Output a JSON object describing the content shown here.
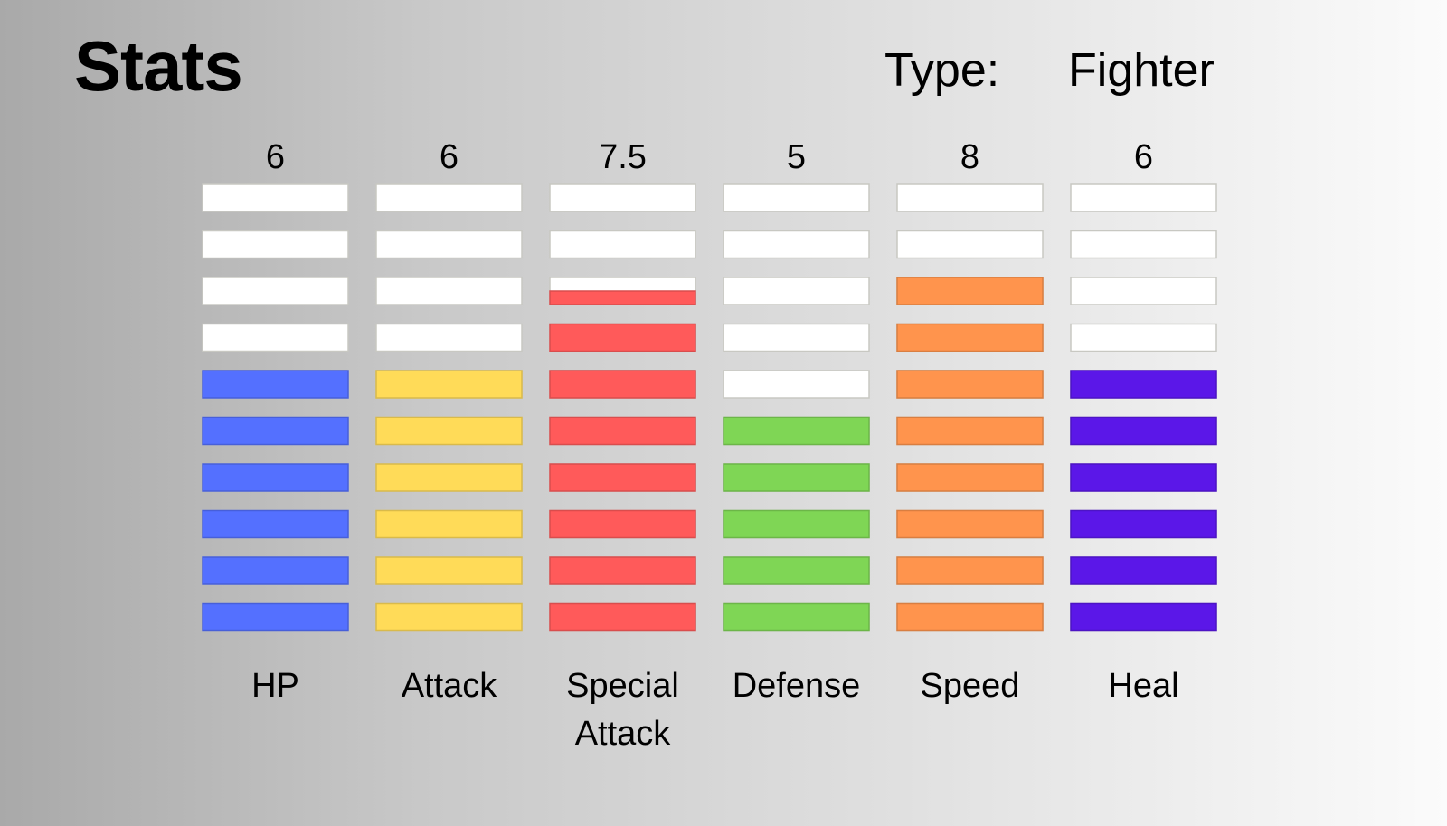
{
  "header": {
    "title": "Stats",
    "type_label": "Type:",
    "type_value": "Fighter"
  },
  "chart_data": {
    "type": "bar",
    "ylim": [
      0,
      10
    ],
    "segments_per_bar": 10,
    "empty_color": "#ffffff",
    "categories": [
      "HP",
      "Attack",
      "Special Attack",
      "Defense",
      "Speed",
      "Heal"
    ],
    "category_lines": [
      [
        "HP"
      ],
      [
        "Attack"
      ],
      [
        "Special",
        "Attack"
      ],
      [
        "Defense"
      ],
      [
        "Speed"
      ],
      [
        "Heal"
      ]
    ],
    "value_labels": [
      "6",
      "6",
      "7.5",
      "5",
      "8",
      "6"
    ],
    "values": [
      6,
      6,
      7.5,
      5,
      8,
      6
    ],
    "colors": [
      "#5470ff",
      "#ffdb58",
      "#ff5a5a",
      "#7fd655",
      "#ff944d",
      "#5b17e8"
    ]
  }
}
